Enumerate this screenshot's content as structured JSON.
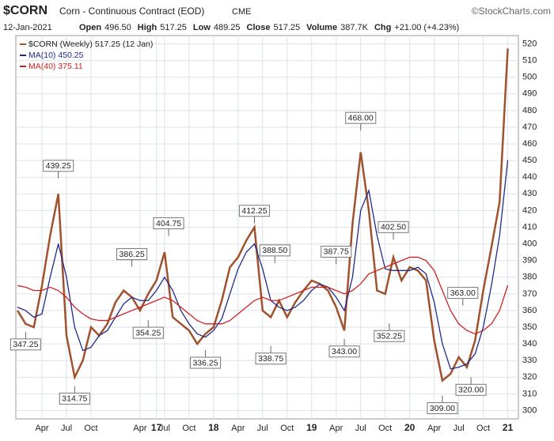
{
  "chart_data": {
    "type": "line",
    "symbol": "$CORN",
    "title": "Corn - Continuous Contract (EOD)",
    "exchange": "CME",
    "source": "©StockCharts.com",
    "date": "12-Jan-2021",
    "quote": [
      {
        "name": "Open",
        "value": "496.50"
      },
      {
        "name": "High",
        "value": "517.25"
      },
      {
        "name": "Low",
        "value": "489.25"
      },
      {
        "name": "Close",
        "value": "517.25"
      },
      {
        "name": "Volume",
        "value": "387.7K"
      },
      {
        "name": "Chg",
        "value": "+21.00 (+4.23%)"
      }
    ],
    "x": [
      0,
      1,
      2,
      3,
      4,
      5,
      6,
      7,
      8,
      9,
      10,
      11,
      12,
      13,
      14,
      15,
      16,
      17,
      18,
      19,
      20,
      21,
      22,
      23,
      24,
      25,
      26,
      27,
      28,
      29,
      30,
      31,
      32,
      33,
      34,
      35,
      36,
      37,
      38,
      39,
      40,
      41,
      42,
      43,
      44,
      45,
      46,
      47,
      48,
      49,
      50,
      51,
      52,
      53,
      54,
      55,
      56,
      57,
      58,
      59,
      60
    ],
    "series": [
      {
        "name": "$CORN (Weekly) 517.25 (12 Jan)",
        "color": "#a0522d",
        "values": [
          360,
          352,
          350,
          375,
          405,
          430,
          345,
          320,
          330,
          350,
          345,
          352,
          365,
          372,
          368,
          360,
          370,
          378,
          395,
          356,
          352,
          348,
          340,
          346,
          350,
          366,
          386,
          392,
          402,
          410,
          360,
          356,
          366,
          356,
          365,
          372,
          378,
          376,
          372,
          362,
          348,
          412,
          455,
          420,
          372,
          370,
          392,
          378,
          386,
          384,
          378,
          342,
          318,
          322,
          332,
          326,
          342,
          372,
          398,
          425,
          517.25
        ]
      },
      {
        "name": "MA(10) 450.25",
        "color": "#1f2a8a",
        "values": [
          362,
          360,
          356,
          358,
          380,
          400,
          380,
          350,
          336,
          338,
          345,
          348,
          356,
          364,
          368,
          366,
          366,
          372,
          380,
          372,
          360,
          352,
          346,
          344,
          348,
          355,
          370,
          385,
          395,
          400,
          385,
          366,
          362,
          360,
          362,
          366,
          372,
          376,
          374,
          368,
          360,
          380,
          420,
          432,
          405,
          385,
          384,
          384,
          384,
          386,
          382,
          365,
          340,
          325,
          326,
          328,
          334,
          350,
          375,
          405,
          450.25
        ]
      },
      {
        "name": "MA(40) 375.11",
        "color": "#cc2222",
        "values": [
          375,
          374,
          372,
          372,
          374,
          372,
          368,
          362,
          358,
          355,
          354,
          354,
          356,
          358,
          360,
          362,
          364,
          366,
          368,
          366,
          362,
          358,
          354,
          352,
          352,
          352,
          354,
          358,
          362,
          366,
          368,
          366,
          366,
          368,
          370,
          372,
          374,
          374,
          374,
          372,
          370,
          372,
          376,
          382,
          384,
          386,
          388,
          390,
          392,
          392,
          390,
          384,
          372,
          360,
          352,
          348,
          346,
          348,
          352,
          360,
          375.11
        ]
      }
    ],
    "annotations": [
      {
        "x": 5,
        "value": 439.25,
        "label": "439.25",
        "pos": "above"
      },
      {
        "x": 1,
        "value": 347.25,
        "label": "347.25",
        "pos": "below"
      },
      {
        "x": 7,
        "value": 314.75,
        "label": "314.75",
        "pos": "below"
      },
      {
        "x": 14,
        "value": 386.25,
        "label": "386.25",
        "pos": "above"
      },
      {
        "x": 16,
        "value": 354.25,
        "label": "354.25",
        "pos": "below"
      },
      {
        "x": 18.5,
        "value": 404.75,
        "label": "404.75",
        "pos": "above"
      },
      {
        "x": 23,
        "value": 336.25,
        "label": "336.25",
        "pos": "below"
      },
      {
        "x": 29,
        "value": 412.25,
        "label": "412.25",
        "pos": "above"
      },
      {
        "x": 31.5,
        "value": 388.5,
        "label": "388.50",
        "pos": "above"
      },
      {
        "x": 31,
        "value": 338.75,
        "label": "338.75",
        "pos": "below"
      },
      {
        "x": 39,
        "value": 387.75,
        "label": "387.75",
        "pos": "above"
      },
      {
        "x": 40,
        "value": 343,
        "label": "343.00",
        "pos": "below"
      },
      {
        "x": 42,
        "value": 468,
        "label": "468.00",
        "pos": "above"
      },
      {
        "x": 46,
        "value": 402.5,
        "label": "402.50",
        "pos": "above"
      },
      {
        "x": 45.5,
        "value": 352.25,
        "label": "352.25",
        "pos": "below"
      },
      {
        "x": 52,
        "value": 309,
        "label": "309.00",
        "pos": "below"
      },
      {
        "x": 54.5,
        "value": 363,
        "label": "363.00",
        "pos": "above"
      },
      {
        "x": 55.5,
        "value": 320,
        "label": "320.00",
        "pos": "below"
      }
    ],
    "xlim": [
      -0.2,
      61.3
    ],
    "xticks": [
      {
        "value": 3,
        "label": "Apr"
      },
      {
        "value": 6,
        "label": "Jul"
      },
      {
        "value": 9,
        "label": "Oct"
      },
      17,
      {
        "value": 15,
        "label": "Apr"
      },
      {
        "value": 18,
        "label": "Jul"
      },
      {
        "value": 21,
        "label": "Oct"
      },
      {
        "value": 24,
        "label": "18"
      },
      {
        "value": 27,
        "label": "Apr"
      },
      {
        "value": 30,
        "label": "Jul"
      },
      {
        "value": 33,
        "label": "Oct"
      },
      {
        "value": 36,
        "label": "19"
      },
      {
        "value": 39,
        "label": "Apr"
      },
      {
        "value": 42,
        "label": "Jul"
      },
      {
        "value": 45,
        "label": "Oct"
      },
      {
        "value": 48,
        "label": "20"
      },
      {
        "value": 51,
        "label": "Apr"
      },
      {
        "value": 54,
        "label": "Jul"
      },
      {
        "value": 57,
        "label": "Oct"
      },
      {
        "value": 60,
        "label": "21"
      }
    ],
    "ylim": [
      295,
      525
    ],
    "yticks": [
      300,
      310,
      320,
      330,
      340,
      350,
      360,
      370,
      380,
      390,
      400,
      410,
      420,
      430,
      440,
      450,
      460,
      470,
      480,
      490,
      500,
      510,
      520
    ],
    "grid": true
  }
}
